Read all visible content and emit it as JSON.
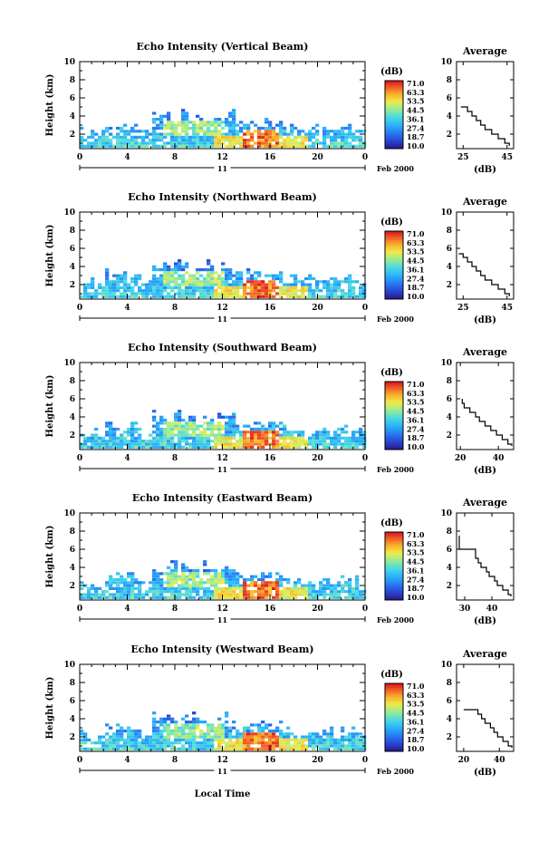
{
  "figure": {
    "xlabel": "Local Time",
    "date_day": "11",
    "date_month_year": "Feb 2000",
    "avg_title": "Average",
    "colorbar_unit": "(dB)",
    "avg_xlabel": "(dB)"
  },
  "chart_data": [
    {
      "type": "heatmap",
      "title": "Echo Intensity (Vertical Beam)",
      "ylabel": "Height (km)",
      "xlabel": "",
      "xlim": [
        0,
        24
      ],
      "ylim": [
        0.4,
        10
      ],
      "xticks": [
        "0",
        "4",
        "8",
        "12",
        "16",
        "20",
        "0"
      ],
      "yticks": [
        "2",
        "4",
        "6",
        "8",
        "10"
      ],
      "colorbar": {
        "unit": "(dB)",
        "ticks": [
          "71.0",
          "63.3",
          "53.5",
          "44.5",
          "36.1",
          "27.4",
          "18.7",
          "10.0"
        ]
      },
      "profile": {
        "title": "Average",
        "xlabel": "(dB)",
        "xlim": [
          22,
          48
        ],
        "xticks": [
          "25",
          "45"
        ],
        "heights": [
          0.7,
          1.0,
          1.5,
          2.0,
          2.5,
          3.0,
          3.5,
          4.0,
          4.5,
          5.0
        ],
        "values": [
          46,
          44,
          41,
          38,
          35,
          33,
          31,
          29,
          27,
          24
        ]
      }
    },
    {
      "type": "heatmap",
      "title": "Echo Intensity (Northward Beam)",
      "ylabel": "Height (km)",
      "xlabel": "",
      "xlim": [
        0,
        24
      ],
      "ylim": [
        0.4,
        10
      ],
      "xticks": [
        "0",
        "4",
        "8",
        "12",
        "16",
        "20",
        "0"
      ],
      "yticks": [
        "2",
        "4",
        "6",
        "8",
        "10"
      ],
      "colorbar": {
        "unit": "(dB)",
        "ticks": [
          "71.0",
          "63.3",
          "53.5",
          "44.5",
          "36.1",
          "27.4",
          "18.7",
          "10.0"
        ]
      },
      "profile": {
        "title": "Average",
        "xlabel": "(dB)",
        "xlim": [
          22,
          48
        ],
        "xticks": [
          "25",
          "45"
        ],
        "heights": [
          0.7,
          1.0,
          1.5,
          2.0,
          2.5,
          3.0,
          3.5,
          4.0,
          4.5,
          5.0,
          5.4
        ],
        "values": [
          46,
          44,
          41,
          38,
          35,
          33,
          31,
          29,
          27,
          25,
          23
        ]
      }
    },
    {
      "type": "heatmap",
      "title": "Echo Intensity (Southward Beam)",
      "ylabel": "Height (km)",
      "xlabel": "",
      "xlim": [
        0,
        24
      ],
      "ylim": [
        0.4,
        10
      ],
      "xticks": [
        "0",
        "4",
        "8",
        "12",
        "16",
        "20",
        "0"
      ],
      "yticks": [
        "2",
        "4",
        "6",
        "8",
        "10"
      ],
      "colorbar": {
        "unit": "(dB)",
        "ticks": [
          "71.0",
          "63.3",
          "53.5",
          "44.5",
          "36.1",
          "27.4",
          "18.7",
          "10.0"
        ]
      },
      "profile": {
        "title": "Average",
        "xlabel": "(dB)",
        "xlim": [
          18,
          48
        ],
        "xticks": [
          "20",
          "40"
        ],
        "heights": [
          0.8,
          1.0,
          1.5,
          2.0,
          2.5,
          3.0,
          3.5,
          4.0,
          4.5,
          5.0,
          5.5,
          6.0
        ],
        "values": [
          47,
          45,
          42,
          39,
          36,
          33,
          30,
          28,
          25,
          22,
          21,
          21
        ]
      }
    },
    {
      "type": "heatmap",
      "title": "Echo Intensity (Eastward Beam)",
      "ylabel": "Height (km)",
      "xlabel": "",
      "xlim": [
        0,
        24
      ],
      "ylim": [
        0.4,
        10
      ],
      "xticks": [
        "0",
        "4",
        "8",
        "12",
        "16",
        "20",
        "0"
      ],
      "yticks": [
        "2",
        "4",
        "6",
        "8",
        "10"
      ],
      "colorbar": {
        "unit": "(dB)",
        "ticks": [
          "71.0",
          "63.3",
          "53.5",
          "44.5",
          "36.1",
          "27.4",
          "18.7",
          "10.0"
        ]
      },
      "profile": {
        "title": "Average",
        "xlabel": "(dB)",
        "xlim": [
          27,
          48
        ],
        "xticks": [
          "30",
          "40"
        ],
        "heights": [
          0.8,
          1.0,
          1.5,
          2.0,
          2.5,
          3.0,
          3.5,
          4.0,
          4.5,
          5.0,
          6.0,
          7.5
        ],
        "values": [
          47,
          46,
          44,
          42,
          41,
          39,
          38,
          36,
          35,
          34,
          28,
          28
        ]
      }
    },
    {
      "type": "heatmap",
      "title": "Echo Intensity (Westward Beam)",
      "ylabel": "Height (km)",
      "xlabel": "Local Time",
      "xlim": [
        0,
        24
      ],
      "ylim": [
        0.4,
        10
      ],
      "xticks": [
        "0",
        "4",
        "8",
        "12",
        "16",
        "20",
        "0"
      ],
      "yticks": [
        "2",
        "4",
        "6",
        "8",
        "10"
      ],
      "colorbar": {
        "unit": "(dB)",
        "ticks": [
          "71.0",
          "63.3",
          "53.5",
          "44.5",
          "36.1",
          "27.4",
          "18.7",
          "10.0"
        ]
      },
      "profile": {
        "title": "Average",
        "xlabel": "(dB)",
        "xlim": [
          16,
          48
        ],
        "xticks": [
          "20",
          "40"
        ],
        "heights": [
          0.8,
          1.0,
          1.5,
          2.0,
          2.5,
          3.0,
          3.5,
          4.0,
          4.5,
          5.0
        ],
        "values": [
          47,
          45,
          42,
          39,
          37,
          35,
          32,
          30,
          28,
          20
        ]
      }
    }
  ]
}
